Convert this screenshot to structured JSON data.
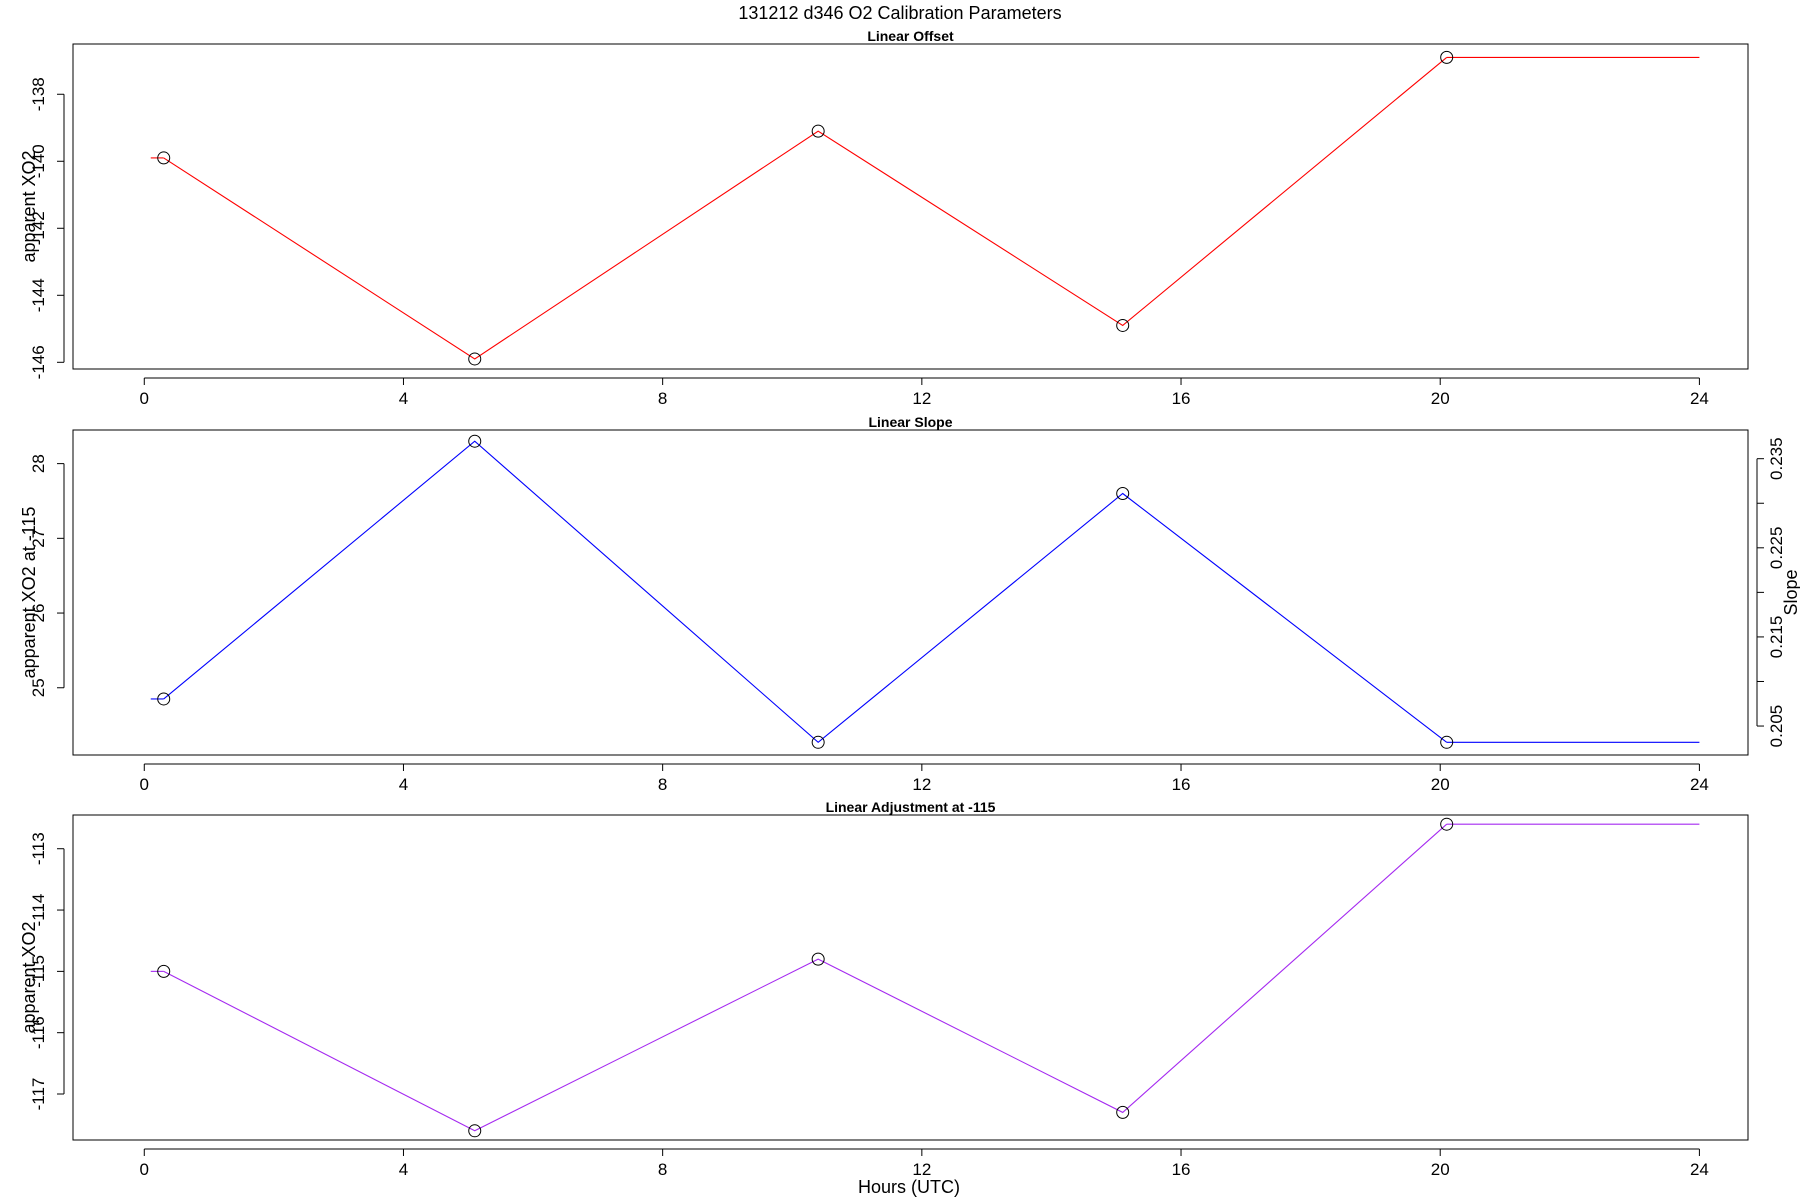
{
  "figure": {
    "title": "131212   d346   O2 Calibration Parameters",
    "xlabel": "Hours (UTC)"
  },
  "chart_data": [
    {
      "type": "line",
      "title": "Linear Offset",
      "xlabel": "",
      "ylabel": "apparent XO2",
      "xlim": [
        -1.1,
        24.75
      ],
      "ylim": [
        -146.2,
        -136.5
      ],
      "xticks": [
        0,
        4,
        8,
        12,
        16,
        20,
        24
      ],
      "yticks": [
        -146,
        -144,
        -142,
        -140,
        -138
      ],
      "color": "#ff0000",
      "series": [
        {
          "x": [
            0.3,
            5.1,
            10.4,
            15.1,
            20.1
          ],
          "y": [
            -139.9,
            -145.9,
            -139.1,
            -144.9,
            -136.9
          ]
        }
      ],
      "lead_segment": {
        "x": [
          0.1,
          0.3
        ],
        "y": [
          -139.9,
          -139.9
        ]
      },
      "tail_segment": {
        "x": [
          20.1,
          24.0
        ],
        "y": [
          -136.9,
          -136.9
        ]
      }
    },
    {
      "type": "line",
      "title": "Linear Slope",
      "xlabel": "",
      "ylabel": "apparent XO2 at -115",
      "y2label": "Slope",
      "xlim": [
        -1.1,
        24.75
      ],
      "ylim": [
        24.1,
        28.45
      ],
      "y2lim": [
        0.20175,
        0.23822
      ],
      "xticks": [
        0,
        4,
        8,
        12,
        16,
        20,
        24
      ],
      "yticks": [
        25,
        26,
        27,
        28
      ],
      "y2ticks": [
        0.205,
        0.21,
        0.215,
        0.22,
        0.225,
        0.23,
        0.235
      ],
      "y2ticklabels": [
        "0.205",
        "",
        "0.215",
        "",
        "0.225",
        "",
        "0.235"
      ],
      "color": "#0000ff",
      "series": [
        {
          "x": [
            0.3,
            5.1,
            10.4,
            15.1,
            20.1
          ],
          "y": [
            24.85,
            28.3,
            24.27,
            27.6,
            24.27
          ]
        }
      ],
      "lead_segment": {
        "x": [
          0.1,
          0.3
        ],
        "y": [
          24.85,
          24.85
        ]
      },
      "tail_segment": {
        "x": [
          20.1,
          24.0
        ],
        "y": [
          24.27,
          24.27
        ]
      }
    },
    {
      "type": "line",
      "title": "Linear Adjustment at -115",
      "xlabel": "Hours (UTC)",
      "ylabel": "apparent XO2",
      "xlim": [
        -1.1,
        24.75
      ],
      "ylim": [
        -117.75,
        -112.45
      ],
      "xticks": [
        0,
        4,
        8,
        12,
        16,
        20,
        24
      ],
      "yticks": [
        -117,
        -116,
        -115,
        -114,
        -113
      ],
      "color": "#a52af0",
      "series": [
        {
          "x": [
            0.3,
            5.1,
            10.4,
            15.1,
            20.1
          ],
          "y": [
            -115.0,
            -117.6,
            -114.8,
            -117.3,
            -112.6
          ]
        }
      ],
      "lead_segment": {
        "x": [
          0.1,
          0.3
        ],
        "y": [
          -115.0,
          -115.0
        ]
      },
      "tail_segment": {
        "x": [
          20.1,
          24.0
        ],
        "y": [
          -112.6,
          -112.6
        ]
      }
    }
  ]
}
